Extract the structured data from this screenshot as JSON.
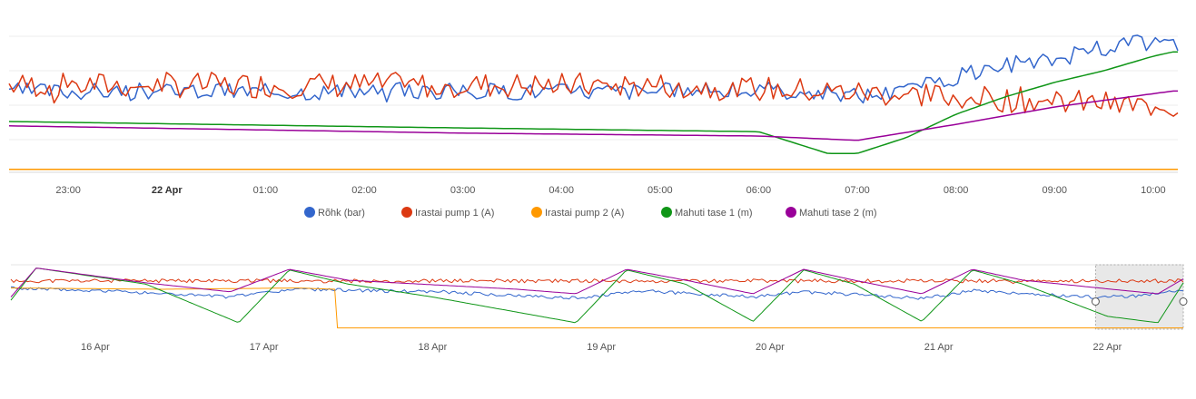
{
  "chart_data": [
    {
      "type": "line",
      "name": "main-chart",
      "x_unit": "hours_since_22_Apr_00:00",
      "xlim": [
        -1.6,
        10.25
      ],
      "ylim": [
        0,
        100
      ],
      "x_ticks": [
        {
          "x": -1,
          "label": "23:00",
          "bold": false
        },
        {
          "x": 0,
          "label": "22 Apr",
          "bold": true
        },
        {
          "x": 1,
          "label": "01:00",
          "bold": false
        },
        {
          "x": 2,
          "label": "02:00",
          "bold": false
        },
        {
          "x": 3,
          "label": "03:00",
          "bold": false
        },
        {
          "x": 4,
          "label": "04:00",
          "bold": false
        },
        {
          "x": 5,
          "label": "05:00",
          "bold": false
        },
        {
          "x": 6,
          "label": "06:00",
          "bold": false
        },
        {
          "x": 7,
          "label": "07:00",
          "bold": false
        },
        {
          "x": 8,
          "label": "08:00",
          "bold": false
        },
        {
          "x": 9,
          "label": "09:00",
          "bold": false
        },
        {
          "x": 10,
          "label": "10:00",
          "bold": false
        }
      ],
      "grid": true,
      "series": [
        {
          "name": "Rõhk (bar)",
          "color": "#3366cc",
          "style": "noisy",
          "keys": [
            [
              -1.6,
              56
            ],
            [
              6.5,
              56
            ],
            [
              7.0,
              53
            ],
            [
              7.5,
              56
            ],
            [
              8.0,
              66
            ],
            [
              8.5,
              72
            ],
            [
              9.0,
              78
            ],
            [
              9.4,
              84
            ],
            [
              9.8,
              89
            ],
            [
              10.2,
              89
            ]
          ],
          "noise": 6,
          "seed": 3
        },
        {
          "name": "Irastai pump 1 (A)",
          "color": "#dc3912",
          "style": "noisy",
          "keys": [
            [
              -1.6,
              60
            ],
            [
              5.0,
              60
            ],
            [
              7.0,
              55
            ],
            [
              10.2,
              45
            ]
          ],
          "noise": 9,
          "seed": 7
        },
        {
          "name": "Irastai pump 2 (A)",
          "color": "#ff9900",
          "style": "smooth",
          "keys": [
            [
              -1.6,
              2
            ],
            [
              10.2,
              2
            ]
          ]
        },
        {
          "name": "Mahuti tase 1 (m)",
          "color": "#109618",
          "style": "smooth",
          "keys": [
            [
              -1.6,
              35
            ],
            [
              2.5,
              31
            ],
            [
              6.0,
              28
            ],
            [
              6.7,
              13
            ],
            [
              7.0,
              13
            ],
            [
              7.5,
              24
            ],
            [
              8.0,
              40
            ],
            [
              8.5,
              52
            ],
            [
              9.0,
              62
            ],
            [
              9.5,
              70
            ],
            [
              10.0,
              80
            ],
            [
              10.2,
              83
            ]
          ]
        },
        {
          "name": "Mahuti tase 2 (m)",
          "color": "#990099",
          "style": "smooth",
          "keys": [
            [
              -1.6,
              32
            ],
            [
              3.0,
              27
            ],
            [
              6.0,
              25
            ],
            [
              7.0,
              22
            ],
            [
              8.0,
              33
            ],
            [
              9.0,
              45
            ],
            [
              10.2,
              56
            ]
          ]
        }
      ]
    },
    {
      "type": "line",
      "name": "navigator-chart",
      "x_unit": "days_since_16_Apr_00:00",
      "xlim": [
        -0.5,
        6.45
      ],
      "ylim": [
        0,
        100
      ],
      "x_ticks": [
        {
          "x": 0,
          "label": "16 Apr"
        },
        {
          "x": 1,
          "label": "17 Apr"
        },
        {
          "x": 2,
          "label": "18 Apr"
        },
        {
          "x": 3,
          "label": "19 Apr"
        },
        {
          "x": 4,
          "label": "20 Apr"
        },
        {
          "x": 5,
          "label": "21 Apr"
        },
        {
          "x": 6,
          "label": "22 Apr"
        }
      ],
      "selection": [
        5.93,
        6.45
      ],
      "series": [
        {
          "name": "Irastai pump 1 (A)",
          "color": "#dc3912",
          "style": "noisy",
          "keys": [
            [
              -0.5,
              75
            ],
            [
              6.45,
              75
            ]
          ],
          "noise": 3,
          "seed": 11
        },
        {
          "name": "Rõhk (bar)",
          "color": "#3366cc",
          "style": "noisy",
          "keys": [
            [
              -0.5,
              64
            ],
            [
              0.2,
              58
            ],
            [
              0.8,
              50
            ],
            [
              0.95,
              55
            ],
            [
              1.2,
              62
            ],
            [
              2.0,
              58
            ],
            [
              2.9,
              48
            ],
            [
              3.2,
              60
            ],
            [
              3.9,
              50
            ],
            [
              4.2,
              58
            ],
            [
              4.9,
              48
            ],
            [
              5.2,
              60
            ],
            [
              5.9,
              50
            ],
            [
              6.2,
              52
            ],
            [
              6.45,
              60
            ]
          ],
          "noise": 2.5,
          "seed": 5
        },
        {
          "name": "Irastai pump 2 (A)",
          "color": "#ff9900",
          "style": "smooth",
          "keys": [
            [
              -0.5,
              64
            ],
            [
              0.4,
              62
            ],
            [
              1.2,
              64
            ],
            [
              1.42,
              62
            ],
            [
              1.43,
              2
            ],
            [
              6.45,
              2
            ]
          ]
        },
        {
          "name": "Mahuti tase 1 (m)",
          "color": "#109618",
          "style": "smooth",
          "keys": [
            [
              -0.5,
              45
            ],
            [
              -0.35,
              95
            ],
            [
              0.3,
              70
            ],
            [
              0.85,
              10
            ],
            [
              1.15,
              92
            ],
            [
              1.5,
              70
            ],
            [
              2.0,
              50
            ],
            [
              2.85,
              10
            ],
            [
              3.15,
              92
            ],
            [
              3.5,
              70
            ],
            [
              3.9,
              12
            ],
            [
              4.2,
              92
            ],
            [
              4.5,
              70
            ],
            [
              4.9,
              12
            ],
            [
              5.2,
              92
            ],
            [
              5.5,
              70
            ],
            [
              6.0,
              20
            ],
            [
              6.3,
              10
            ],
            [
              6.45,
              72
            ]
          ]
        },
        {
          "name": "Mahuti tase 2 (m)",
          "color": "#990099",
          "style": "smooth",
          "keys": [
            [
              -0.5,
              50
            ],
            [
              -0.35,
              95
            ],
            [
              0.3,
              72
            ],
            [
              0.8,
              58
            ],
            [
              1.15,
              93
            ],
            [
              1.5,
              76
            ],
            [
              2.5,
              62
            ],
            [
              2.85,
              55
            ],
            [
              3.15,
              93
            ],
            [
              3.5,
              76
            ],
            [
              3.9,
              55
            ],
            [
              4.2,
              93
            ],
            [
              4.5,
              76
            ],
            [
              4.9,
              55
            ],
            [
              5.2,
              93
            ],
            [
              5.5,
              76
            ],
            [
              6.1,
              60
            ],
            [
              6.3,
              55
            ],
            [
              6.45,
              78
            ]
          ]
        }
      ]
    }
  ]
}
